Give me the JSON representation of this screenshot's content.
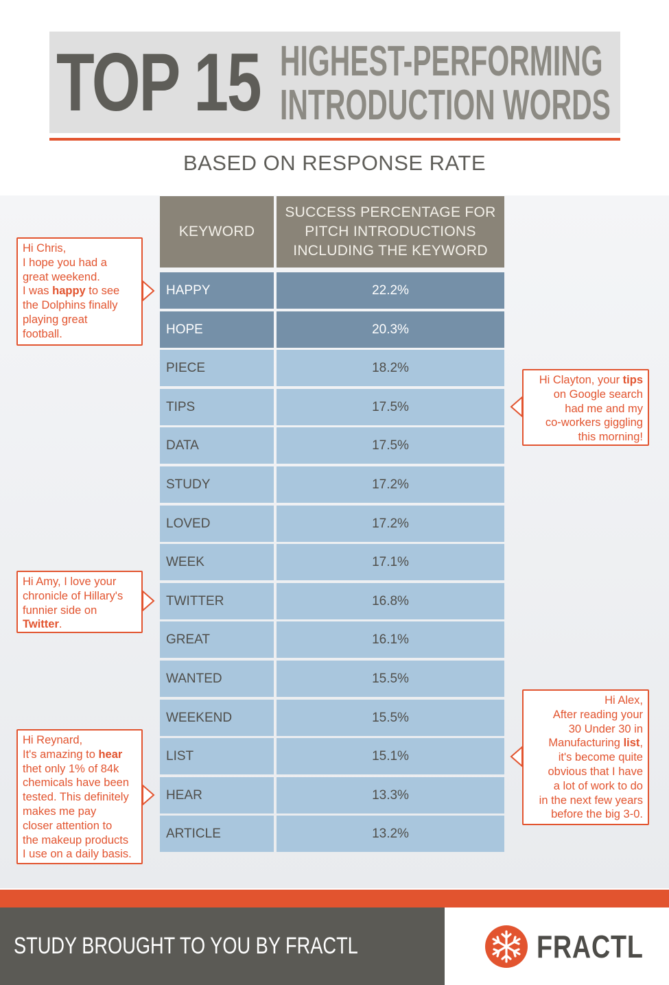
{
  "header": {
    "title_main": "TOP 15",
    "title_line1": "HIGHEST-PERFORMING",
    "title_line2": "INTRODUCTION WORDS",
    "subtitle": "BASED ON RESPONSE RATE"
  },
  "colors": {
    "accent": "#e2542f",
    "header_cell": "#8a8478",
    "top_row": "#7590a8",
    "row": "#a9c6dd",
    "dark_gray": "#5b5a55"
  },
  "chart_data": {
    "type": "table",
    "columns": [
      "KEYWORD",
      "SUCCESS PERCENTAGE FOR PITCH INTRODUCTIONS INCLUDING THE KEYWORD"
    ],
    "rows": [
      {
        "keyword": "HAPPY",
        "value": "22.2%",
        "highlight": true
      },
      {
        "keyword": "HOPE",
        "value": "20.3%",
        "highlight": true
      },
      {
        "keyword": "PIECE",
        "value": "18.2%",
        "highlight": false
      },
      {
        "keyword": "TIPS",
        "value": "17.5%",
        "highlight": false
      },
      {
        "keyword": "DATA",
        "value": "17.5%",
        "highlight": false
      },
      {
        "keyword": "STUDY",
        "value": "17.2%",
        "highlight": false
      },
      {
        "keyword": "LOVED",
        "value": "17.2%",
        "highlight": false
      },
      {
        "keyword": "WEEK",
        "value": "17.1%",
        "highlight": false
      },
      {
        "keyword": "TWITTER",
        "value": "16.8%",
        "highlight": false
      },
      {
        "keyword": "GREAT",
        "value": "16.1%",
        "highlight": false
      },
      {
        "keyword": "WANTED",
        "value": "15.5%",
        "highlight": false
      },
      {
        "keyword": "WEEKEND",
        "value": "15.5%",
        "highlight": false
      },
      {
        "keyword": "LIST",
        "value": "15.1%",
        "highlight": false
      },
      {
        "keyword": "HEAR",
        "value": "13.3%",
        "highlight": false
      },
      {
        "keyword": "ARTICLE",
        "value": "13.2%",
        "highlight": false
      }
    ]
  },
  "table": {
    "header_keyword": "KEYWORD",
    "header_pct_line1": "SUCCESS PERCENTAGE FOR",
    "header_pct_line2": "PITCH INTRODUCTIONS",
    "header_pct_line3": "INCLUDING THE KEYWORD"
  },
  "callouts": [
    {
      "side": "left",
      "row": "HAPPY",
      "lines": [
        [
          {
            "t": "Hi Chris,"
          }
        ],
        [
          {
            "t": "I hope you had a"
          }
        ],
        [
          {
            "t": "great weekend."
          }
        ],
        [
          {
            "t": "I was "
          },
          {
            "t": "happy",
            "b": true
          },
          {
            "t": " to see"
          }
        ],
        [
          {
            "t": "the Dolphins finally"
          }
        ],
        [
          {
            "t": "playing great"
          }
        ],
        [
          {
            "t": "football."
          }
        ]
      ]
    },
    {
      "side": "right",
      "row": "TIPS",
      "lines": [
        [
          {
            "t": "Hi Clayton, your "
          },
          {
            "t": "tips",
            "b": true
          }
        ],
        [
          {
            "t": "on Google search"
          }
        ],
        [
          {
            "t": "had me and my"
          }
        ],
        [
          {
            "t": "co-workers giggling"
          }
        ],
        [
          {
            "t": "this morning!"
          }
        ]
      ]
    },
    {
      "side": "left",
      "row": "TWITTER",
      "lines": [
        [
          {
            "t": "Hi Amy, I love your"
          }
        ],
        [
          {
            "t": "chronicle of Hillary's"
          }
        ],
        [
          {
            "t": "funnier side on"
          }
        ],
        [
          {
            "t": "Twitter",
            "b": true
          },
          {
            "t": "."
          }
        ]
      ]
    },
    {
      "side": "left",
      "row": "HEAR",
      "lines": [
        [
          {
            "t": "Hi Reynard,"
          }
        ],
        [
          {
            "t": "It's amazing to "
          },
          {
            "t": "hear",
            "b": true
          }
        ],
        [
          {
            "t": "thet only 1% of 84k"
          }
        ],
        [
          {
            "t": "chemicals have been"
          }
        ],
        [
          {
            "t": "tested. This definitely"
          }
        ],
        [
          {
            "t": "makes me pay"
          }
        ],
        [
          {
            "t": "closer attention to"
          }
        ],
        [
          {
            "t": "the makeup products"
          }
        ],
        [
          {
            "t": "I use on a daily basis."
          }
        ]
      ]
    },
    {
      "side": "right",
      "row": "LIST",
      "lines": [
        [
          {
            "t": "Hi Alex,"
          }
        ],
        [
          {
            "t": "After reading your"
          }
        ],
        [
          {
            "t": "30 Under 30 in"
          }
        ],
        [
          {
            "t": "Manufacturing "
          },
          {
            "t": "list",
            "b": true
          },
          {
            "t": ","
          }
        ],
        [
          {
            "t": "it's become quite"
          }
        ],
        [
          {
            "t": "obvious that I have"
          }
        ],
        [
          {
            "t": "a lot of work to do"
          }
        ],
        [
          {
            "t": "in the next few years"
          }
        ],
        [
          {
            "t": "before the big 3-0."
          }
        ]
      ]
    }
  ],
  "footer": {
    "text": "STUDY BROUGHT TO YOU BY FRACTL",
    "logo_text": "FRACTL",
    "logo_icon": "snowflake-icon"
  }
}
